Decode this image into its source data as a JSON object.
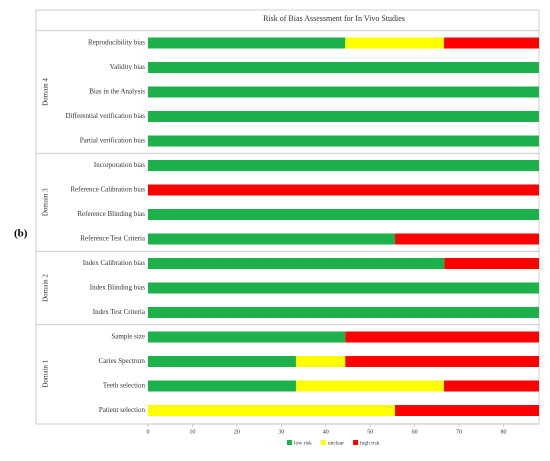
{
  "chart_data": {
    "type": "stacked-bar-horizontal",
    "title": "Risk of Bias Assessment for In Vivo Studies",
    "panel_label": "(b)",
    "groups": [
      {
        "name": "Domain 4",
        "categories": [
          "Reproducibility bias",
          "Validity bias",
          "Bias in the Analysis",
          "Differential verification bias",
          "Partial verification bias"
        ]
      },
      {
        "name": "Domain 3",
        "categories": [
          "Incorporation bias",
          "Reference Calibration bias",
          "Reference Blinding bias",
          "Reference Test Criteria"
        ]
      },
      {
        "name": "Domain 2",
        "categories": [
          "Index Calibration bias",
          "Index Blinding bias",
          "Index Test Criteria"
        ]
      },
      {
        "name": "Domain 1",
        "categories": [
          "Sample size",
          "Caries Spectrum",
          "Teeth selection",
          "Patient selection"
        ]
      }
    ],
    "series": [
      {
        "name": "low risk",
        "color": "#1db14b",
        "values": [
          44.4,
          88,
          88,
          88,
          88,
          88,
          0,
          88,
          55.6,
          66.7,
          88,
          88,
          44.4,
          33.3,
          33.3,
          0
        ]
      },
      {
        "name": "unclear",
        "color": "#ffff00",
        "values": [
          22.2,
          0,
          0,
          0,
          0,
          0,
          0,
          0,
          0,
          0,
          0,
          0,
          0,
          11.1,
          33.3,
          55.6
        ]
      },
      {
        "name": "high risk",
        "color": "#ff0000",
        "values": [
          21.4,
          0,
          0,
          0,
          0,
          0,
          88,
          0,
          32.4,
          21.3,
          0,
          0,
          43.6,
          43.6,
          21.4,
          32.4
        ]
      }
    ],
    "xlim": [
      0,
      88
    ],
    "xticks": [
      0,
      10,
      20,
      30,
      40,
      50,
      60,
      70,
      80
    ],
    "legend": "bottom"
  }
}
